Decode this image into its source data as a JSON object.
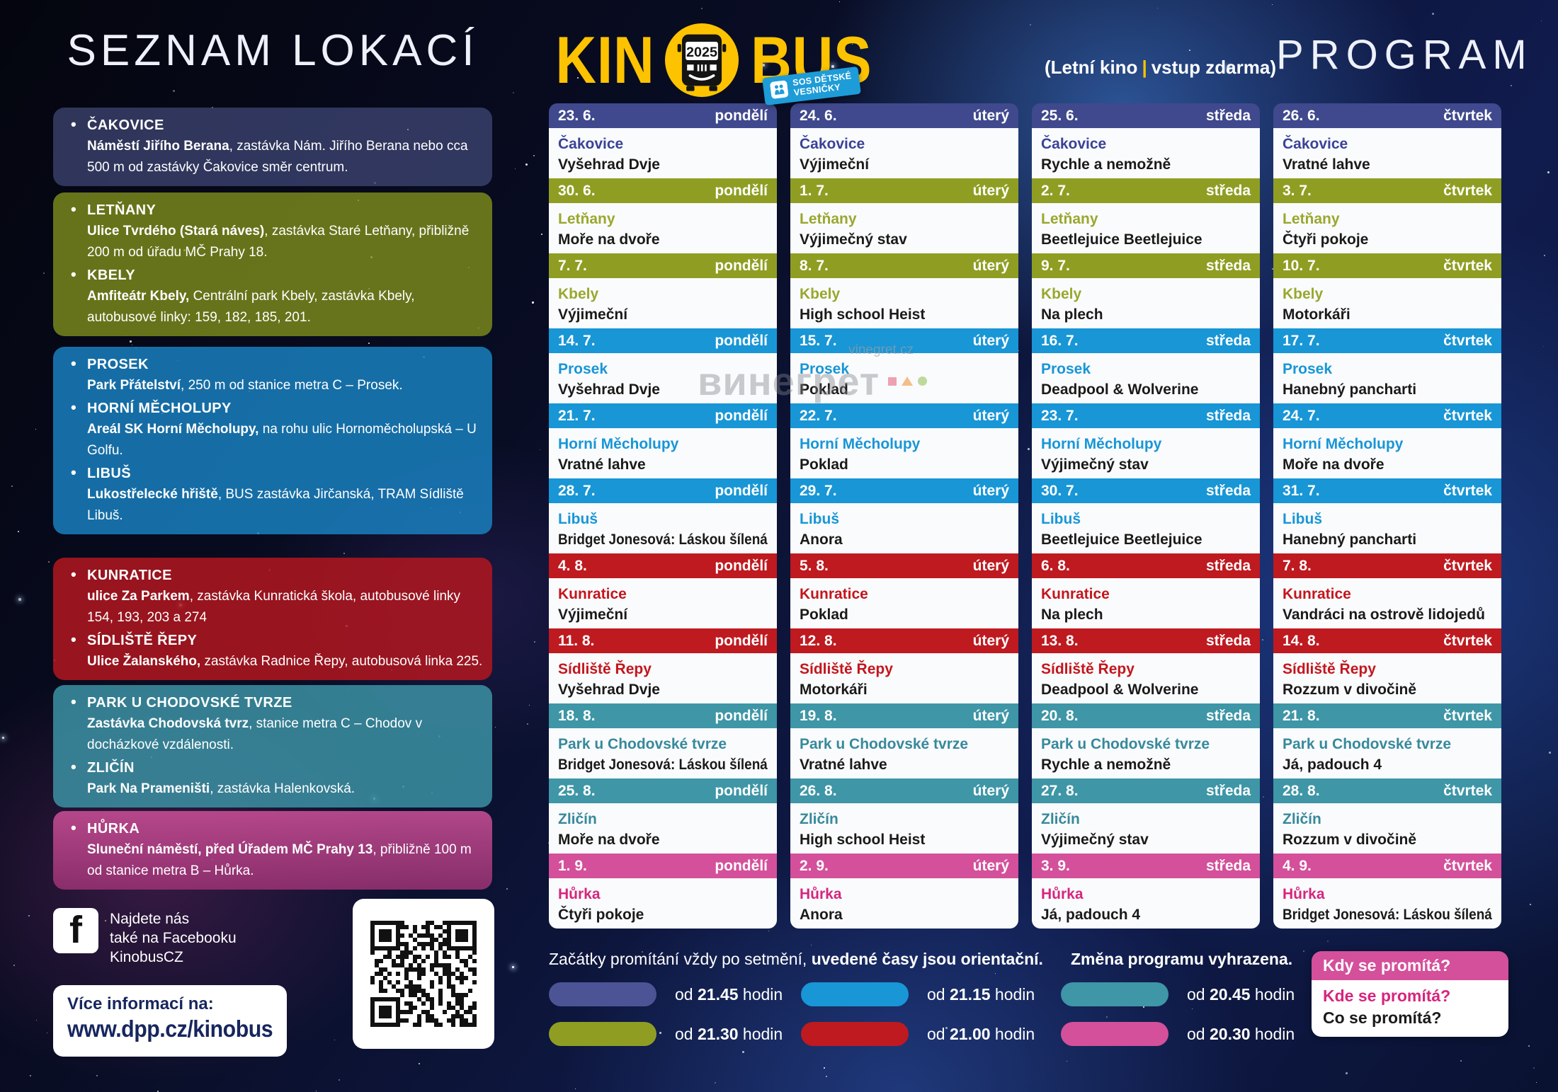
{
  "header": {
    "left_title": "SEZNAM LOKACÍ",
    "logo": {
      "kin": "KIN",
      "bus": "BUS",
      "year": "2025"
    },
    "sos": {
      "line1": "SOS DĚTSKÉ",
      "line2": "VESNIČKY"
    },
    "subtitle": {
      "prefix": "(Letní kino",
      "separator": "|",
      "suffix": "vstup zdarma)"
    },
    "right_title": "PROGRAM"
  },
  "palette": {
    "indigo": {
      "bar": "#40498D",
      "pill": "#4C5496",
      "text": "#3A4396",
      "box": "rgba(88,97,158,0.52)"
    },
    "olive": {
      "bar": "#8F9E22",
      "pill": "#8F9E22",
      "text": "#9AA72E",
      "box": "rgba(128,142,28,0.80)"
    },
    "blue": {
      "bar": "#1896D6",
      "pill": "#1896D6",
      "text": "#1896D6",
      "box": "rgba(26,132,196,0.82)"
    },
    "red": {
      "bar": "#BE1A20",
      "pill": "#BE1A20",
      "text": "#C3161C",
      "box": "rgba(178,22,30,0.85)"
    },
    "teal": {
      "bar": "#3E96A6",
      "pill": "#3E96A6",
      "text": "#37899B",
      "box": "rgba(60,146,164,0.85)"
    },
    "pink": {
      "bar": "#D4509B",
      "pill": "#D4509B",
      "text": "#D6257E",
      "box": "rgba(198,72,148,0.85)"
    },
    "accent_yellow": "#FDC300",
    "navy_text": "#17265E",
    "sos_blue": "#1E9CD8"
  },
  "locations": [
    {
      "color": "indigo",
      "items": [
        {
          "name": "ČAKOVICE",
          "lead": "Náměstí Jiřího Berana",
          "rest": ", zastávka Nám. Jiřího Berana nebo cca 500 m od zastávky Čakovice směr centrum."
        }
      ]
    },
    {
      "color": "olive",
      "items": [
        {
          "name": "LETŇANY",
          "lead": "Ulice Tvrdého (Stará náves)",
          "rest": ", zastávka Staré Letňany, přibližně 200 m od úřadu MČ Prahy 18."
        },
        {
          "name": "KBELY",
          "lead": "Amfiteátr Kbely,",
          "rest": " Centrální park Kbely, zastávka Kbely, autobusové linky: 159, 182, 185, 201."
        }
      ]
    },
    {
      "color": "blue",
      "items": [
        {
          "name": "PROSEK",
          "lead": "Park Přátelství",
          "rest": ", 250 m od stanice metra C – Prosek.",
          "nowrap": true
        },
        {
          "name": "HORNÍ MĚCHOLUPY",
          "lead": "Areál SK Horní Měcholupy,",
          "rest": " na rohu ulic Hornoměcholupská – U Golfu."
        },
        {
          "name": "LIBUŠ",
          "lead": "Lukostřelecké hřiště",
          "rest": ", BUS zastávka Jirčanská, TRAM Sídliště Libuš."
        }
      ]
    },
    {
      "color": "red",
      "items": [
        {
          "name": "KUNRATICE",
          "lead": "ulice Za Parkem",
          "rest": ", zastávka Kunratická škola, autobusové linky 154, 193, 203 a 274"
        },
        {
          "name": "SÍDLIŠTĚ ŘEPY",
          "lead": "Ulice Žalanského,",
          "rest": " zastávka Radnice Řepy, autobusová linka 225.",
          "nowrap": true
        }
      ]
    },
    {
      "color": "teal",
      "items": [
        {
          "name": "PARK U CHODOVSKÉ TVRZE",
          "lead": "Zastávka Chodovská tvrz",
          "rest": ", stanice metra C – Chodov v docházkové vzdálenosti."
        },
        {
          "name": "ZLIČÍN",
          "lead": "Park Na Prameništi",
          "rest": ", zastávka Halenkovská.",
          "nowrap": true
        }
      ]
    },
    {
      "color": "pink",
      "items": [
        {
          "name": "HŮRKA",
          "lead": "Sluneční náměstí, před Úřadem MČ Prahy 13",
          "rest": ", přibližně 100 m od stanice metra B – Hůrka."
        }
      ]
    }
  ],
  "program": {
    "columns": [
      {
        "weekday": "pondělí",
        "shows": [
          {
            "date": "23. 6.",
            "color": "indigo",
            "location": "Čakovice",
            "film": "Vyšehrad Dvje"
          },
          {
            "date": "30. 6.",
            "color": "olive",
            "location": "Letňany",
            "film": "Moře na dvoře"
          },
          {
            "date": "7. 7.",
            "color": "olive",
            "location": "Kbely",
            "film": "Výjimeční"
          },
          {
            "date": "14. 7.",
            "color": "blue",
            "location": "Prosek",
            "film": "Vyšehrad Dvje"
          },
          {
            "date": "21. 7.",
            "color": "blue",
            "location": "Horní Měcholupy",
            "film": "Vratné lahve"
          },
          {
            "date": "28. 7.",
            "color": "blue",
            "location": "Libuš",
            "film": "Bridget Jonesová: Láskou šílená"
          },
          {
            "date": "4. 8.",
            "color": "red",
            "location": "Kunratice",
            "film": "Výjimeční"
          },
          {
            "date": "11. 8.",
            "color": "red",
            "location": "Sídliště Řepy",
            "film": "Vyšehrad Dvje"
          },
          {
            "date": "18. 8.",
            "color": "teal",
            "location": "Park u Chodovské tvrze",
            "film": "Bridget Jonesová: Láskou šílená"
          },
          {
            "date": "25. 8.",
            "color": "teal",
            "location": "Zličín",
            "film": "Moře na dvoře"
          },
          {
            "date": "1. 9.",
            "color": "pink",
            "location": "Hůrka",
            "film": "Čtyři pokoje"
          }
        ]
      },
      {
        "weekday": "úterý",
        "shows": [
          {
            "date": "24. 6.",
            "color": "indigo",
            "location": "Čakovice",
            "film": "Výjimeční"
          },
          {
            "date": "1. 7.",
            "color": "olive",
            "location": "Letňany",
            "film": "Výjimečný stav"
          },
          {
            "date": "8. 7.",
            "color": "olive",
            "location": "Kbely",
            "film": "High school Heist"
          },
          {
            "date": "15. 7.",
            "color": "blue",
            "location": "Prosek",
            "film": "Poklad"
          },
          {
            "date": "22. 7.",
            "color": "blue",
            "location": "Horní Měcholupy",
            "film": "Poklad"
          },
          {
            "date": "29. 7.",
            "color": "blue",
            "location": "Libuš",
            "film": "Anora"
          },
          {
            "date": "5. 8.",
            "color": "red",
            "location": "Kunratice",
            "film": "Poklad"
          },
          {
            "date": "12. 8.",
            "color": "red",
            "location": "Sídliště Řepy",
            "film": "Motorkáři"
          },
          {
            "date": "19. 8.",
            "color": "teal",
            "location": "Park u Chodovské tvrze",
            "film": "Vratné lahve"
          },
          {
            "date": "26. 8.",
            "color": "teal",
            "location": "Zličín",
            "film": "High school Heist"
          },
          {
            "date": "2. 9.",
            "color": "pink",
            "location": "Hůrka",
            "film": "Anora"
          }
        ]
      },
      {
        "weekday": "středa",
        "shows": [
          {
            "date": "25. 6.",
            "color": "indigo",
            "location": "Čakovice",
            "film": "Rychle a nemožně"
          },
          {
            "date": "2. 7.",
            "color": "olive",
            "location": "Letňany",
            "film": "Beetlejuice Beetlejuice"
          },
          {
            "date": "9. 7.",
            "color": "olive",
            "location": "Kbely",
            "film": "Na plech"
          },
          {
            "date": "16. 7.",
            "color": "blue",
            "location": "Prosek",
            "film": "Deadpool & Wolverine"
          },
          {
            "date": "23. 7.",
            "color": "blue",
            "location": "Horní Měcholupy",
            "film": "Výjimečný stav"
          },
          {
            "date": "30. 7.",
            "color": "blue",
            "location": "Libuš",
            "film": "Beetlejuice Beetlejuice"
          },
          {
            "date": "6. 8.",
            "color": "red",
            "location": "Kunratice",
            "film": "Na plech"
          },
          {
            "date": "13. 8.",
            "color": "red",
            "location": "Sídliště Řepy",
            "film": "Deadpool & Wolverine"
          },
          {
            "date": "20. 8.",
            "color": "teal",
            "location": "Park u Chodovské tvrze",
            "film": "Rychle a nemožně"
          },
          {
            "date": "27. 8.",
            "color": "teal",
            "location": "Zličín",
            "film": "Výjimečný stav"
          },
          {
            "date": "3. 9.",
            "color": "pink",
            "location": "Hůrka",
            "film": "Já, padouch 4"
          }
        ]
      },
      {
        "weekday": "čtvrtek",
        "shows": [
          {
            "date": "26. 6.",
            "color": "indigo",
            "location": "Čakovice",
            "film": "Vratné lahve"
          },
          {
            "date": "3. 7.",
            "color": "olive",
            "location": "Letňany",
            "film": "Čtyři pokoje"
          },
          {
            "date": "10. 7.",
            "color": "olive",
            "location": "Kbely",
            "film": "Motorkáři"
          },
          {
            "date": "17. 7.",
            "color": "blue",
            "location": "Prosek",
            "film": "Hanebný pancharti"
          },
          {
            "date": "24. 7.",
            "color": "blue",
            "location": "Horní Měcholupy",
            "film": "Moře na dvoře"
          },
          {
            "date": "31. 7.",
            "color": "blue",
            "location": "Libuš",
            "film": "Hanebný pancharti"
          },
          {
            "date": "7. 8.",
            "color": "red",
            "location": "Kunratice",
            "film": "Vandráci na ostrově lidojedů"
          },
          {
            "date": "14. 8.",
            "color": "red",
            "location": "Sídliště Řepy",
            "film": "Rozzum v divočině"
          },
          {
            "date": "21. 8.",
            "color": "teal",
            "location": "Park u Chodovské tvrze",
            "film": "Já, padouch 4"
          },
          {
            "date": "28. 8.",
            "color": "teal",
            "location": "Zličín",
            "film": "Rozzum v divočině"
          },
          {
            "date": "4. 9.",
            "color": "pink",
            "location": "Hůrka",
            "film": "Bridget Jonesová: Láskou šílená"
          }
        ]
      }
    ]
  },
  "legend": {
    "prefix": "od",
    "suffix": "hodin",
    "columns": [
      [
        {
          "time": "21.45",
          "color": "indigo"
        },
        {
          "time": "21.30",
          "color": "olive"
        }
      ],
      [
        {
          "time": "21.15",
          "color": "blue"
        },
        {
          "time": "21.00",
          "color": "red"
        }
      ],
      [
        {
          "time": "20.45",
          "color": "teal"
        },
        {
          "time": "20.30",
          "color": "pink"
        }
      ]
    ]
  },
  "footer": {
    "note_normal": "Začátky promítání vždy po setmění, ",
    "note_bold": "uvedené časy jsou orientační.",
    "note2": "Změna programu vyhrazena.",
    "more_label": "Více informací na:",
    "website": "www.dpp.cz/kinobus"
  },
  "fb": {
    "icon_letter": "f",
    "line1": "Najdete nás",
    "line2": "také na Facebooku",
    "line3": "KinobusCZ"
  },
  "infobox": {
    "header": "Kdy se promítá?",
    "line1": "Kde se promítá?",
    "line2": "Co se promítá?"
  },
  "watermark": {
    "url": "vinegret.cz",
    "big": "винегрет"
  }
}
